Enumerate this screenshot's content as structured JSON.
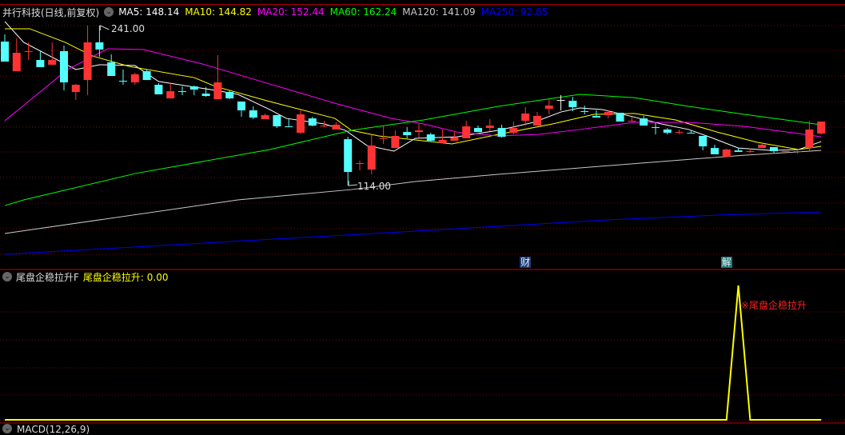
{
  "header": {
    "stock_title": "并行科技(日线,前复权)",
    "ma_legend": [
      {
        "label": "MA5: 148.14",
        "color": "#ffffff"
      },
      {
        "label": "MA10: 144.82",
        "color": "#ffff00"
      },
      {
        "label": "MA20: 152.44",
        "color": "#ff00ff"
      },
      {
        "label": "MA60: 162.24",
        "color": "#00ff00"
      },
      {
        "label": "MA120: 141.09",
        "color": "#c8c8c8"
      },
      {
        "label": "MA250: 92.85",
        "color": "#0000ff"
      }
    ]
  },
  "price_chart": {
    "chart_data": {
      "type": "candlestick",
      "up_color": "#ff3333",
      "down_color": "#54ffff",
      "high_label": "241.00",
      "low_label": "114.00",
      "ylim": [
        50,
        244
      ],
      "candles": [
        [
          228.3,
          234.0,
          212.4,
          212.4
        ],
        [
          204.8,
          230.8,
          204.8,
          219.4
        ],
        [
          220.7,
          227.7,
          213.7,
          220.7
        ],
        [
          213.7,
          221.3,
          208.0,
          208.0
        ],
        [
          209.9,
          227.7,
          209.9,
          213.7
        ],
        [
          220.7,
          225.1,
          189.6,
          195.9
        ],
        [
          188.3,
          194.6,
          181.9,
          194.0
        ],
        [
          197.8,
          241.0,
          185.8,
          227.7
        ],
        [
          227.7,
          241.0,
          216.2,
          222.0
        ],
        [
          211.8,
          218.1,
          201.0,
          201.0
        ],
        [
          197.2,
          206.1,
          194.0,
          197.2
        ],
        [
          195.9,
          203.5,
          194.0,
          202.3
        ],
        [
          204.8,
          206.1,
          197.8,
          197.8
        ],
        [
          194.0,
          195.3,
          186.4,
          186.4
        ],
        [
          183.2,
          195.9,
          183.2,
          188.9
        ],
        [
          188.9,
          192.7,
          185.8,
          188.8
        ],
        [
          192.7,
          193.4,
          185.8,
          190.2
        ],
        [
          187.0,
          192.1,
          184.5,
          185.1
        ],
        [
          182.6,
          217.5,
          182.6,
          195.9
        ],
        [
          188.3,
          189.6,
          182.6,
          183.2
        ],
        [
          180.7,
          180.7,
          168.6,
          173.7
        ],
        [
          173.7,
          176.9,
          166.7,
          168.0
        ],
        [
          166.7,
          171.2,
          166.7,
          169.9
        ],
        [
          169.9,
          169.9,
          159.7,
          161.0
        ],
        [
          161.0,
          167.3,
          161.0,
          160.9
        ],
        [
          155.9,
          174.3,
          155.3,
          170.5
        ],
        [
          167.3,
          168.6,
          161.0,
          161.6
        ],
        [
          161.6,
          165.4,
          160.4,
          161.6
        ],
        [
          158.5,
          164.2,
          158.5,
          162.3
        ],
        [
          150.8,
          152.7,
          114.0,
          124.8
        ],
        [
          131.8,
          133.7,
          126.1,
          131.8
        ],
        [
          126.7,
          154.0,
          122.9,
          145.8
        ],
        [
          151.5,
          161.0,
          147.0,
          151.5
        ],
        [
          143.8,
          157.8,
          143.8,
          153.4
        ],
        [
          156.5,
          160.4,
          151.5,
          154.0
        ],
        [
          156.5,
          162.9,
          152.1,
          157.8
        ],
        [
          154.6,
          155.9,
          148.9,
          149.6
        ],
        [
          147.7,
          158.5,
          147.7,
          150.2
        ],
        [
          149.6,
          156.5,
          149.6,
          152.1
        ],
        [
          151.5,
          165.4,
          151.5,
          161.0
        ],
        [
          159.7,
          161.6,
          156.5,
          156.5
        ],
        [
          159.7,
          166.7,
          157.2,
          161.6
        ],
        [
          159.7,
          162.3,
          152.1,
          152.7
        ],
        [
          155.9,
          164.8,
          154.6,
          159.7
        ],
        [
          165.4,
          176.2,
          161.6,
          171.2
        ],
        [
          161.6,
          172.4,
          161.6,
          169.3
        ],
        [
          175.0,
          182.6,
          170.5,
          177.5
        ],
        [
          181.9,
          185.8,
          173.7,
          181.9
        ],
        [
          181.3,
          184.5,
          173.1,
          176.2
        ],
        [
          173.1,
          177.5,
          170.5,
          173.0
        ],
        [
          169.3,
          173.7,
          168.0,
          168.0
        ],
        [
          169.9,
          173.7,
          167.3,
          172.4
        ],
        [
          171.8,
          171.8,
          164.8,
          164.8
        ],
        [
          165.4,
          168.6,
          164.8,
          165.4
        ],
        [
          167.3,
          169.3,
          161.6,
          161.6
        ],
        [
          160.4,
          164.2,
          154.6,
          160.4
        ],
        [
          158.5,
          159.7,
          154.6,
          155.9
        ],
        [
          156.5,
          158.5,
          154.6,
          156.5
        ],
        [
          155.9,
          157.8,
          155.3,
          155.9
        ],
        [
          153.4,
          153.4,
          141.9,
          145.1
        ],
        [
          143.8,
          146.4,
          138.8,
          138.8
        ],
        [
          136.9,
          143.2,
          136.9,
          142.6
        ],
        [
          141.9,
          143.8,
          140.7,
          140.7
        ],
        [
          141.3,
          143.2,
          140.0,
          141.3
        ],
        [
          143.8,
          147.7,
          143.8,
          146.4
        ],
        [
          144.5,
          144.5,
          140.0,
          141.3
        ],
        [
          141.3,
          142.6,
          139.4,
          141.3
        ],
        [
          141.3,
          142.6,
          139.4,
          141.3
        ],
        [
          143.8,
          165.4,
          140.7,
          158.5
        ],
        [
          155.3,
          164.8,
          154.6,
          164.8
        ]
      ],
      "neutral_candles": [
        47
      ],
      "ma_lines": [
        {
          "name": "MA5",
          "color": "#ffffff",
          "points": [
            [
              0,
              244.2
            ],
            [
              1.6,
              227.7
            ],
            [
              6,
              206.1
            ],
            [
              8,
              209.9
            ],
            [
              11,
              209.3
            ],
            [
              13,
              196.6
            ],
            [
              17.8,
              189.6
            ],
            [
              19.7,
              186.4
            ],
            [
              22.4,
              174.3
            ],
            [
              23.8,
              167.3
            ],
            [
              27,
              162.9
            ],
            [
              28.8,
              157.8
            ],
            [
              30.6,
              145.8
            ],
            [
              32.9,
              141.3
            ],
            [
              34.7,
              151.5
            ],
            [
              38.2,
              152.7
            ],
            [
              41.7,
              157.8
            ],
            [
              44.7,
              164.2
            ],
            [
              47,
              172.4
            ],
            [
              48.6,
              175.6
            ],
            [
              50.5,
              174.3
            ],
            [
              52.8,
              169.3
            ],
            [
              55.5,
              162.9
            ],
            [
              57.8,
              158.5
            ],
            [
              59.7,
              152.1
            ],
            [
              62,
              143.8
            ],
            [
              64.8,
              141.9
            ],
            [
              67.1,
              142.6
            ],
            [
              69,
              148.9
            ]
          ]
        },
        {
          "name": "MA10",
          "color": "#ffff00",
          "points": [
            [
              0,
              238.5
            ],
            [
              2.1,
              238.5
            ],
            [
              5.1,
              227.7
            ],
            [
              7.4,
              216.9
            ],
            [
              10.5,
              208.6
            ],
            [
              16,
              199.7
            ],
            [
              17.8,
              192.7
            ],
            [
              22.4,
              180.7
            ],
            [
              27.9,
              167.3
            ],
            [
              29.3,
              157.8
            ],
            [
              31.6,
              153.4
            ],
            [
              34.7,
              150.2
            ],
            [
              37.8,
              147.0
            ],
            [
              41.7,
              154.6
            ],
            [
              46.3,
              162.9
            ],
            [
              49.8,
              170.5
            ],
            [
              53.2,
              171.2
            ],
            [
              56.7,
              166.1
            ],
            [
              60.2,
              156.5
            ],
            [
              63.6,
              148.3
            ],
            [
              67.1,
              142.6
            ],
            [
              69,
              145.1
            ]
          ]
        },
        {
          "name": "MA20",
          "color": "#ff00ff",
          "points": [
            [
              0,
              165.4
            ],
            [
              5.3,
              206.1
            ],
            [
              8.7,
              222.6
            ],
            [
              11.7,
              222.0
            ],
            [
              16.7,
              210.5
            ],
            [
              22.4,
              194.6
            ],
            [
              28.1,
              178.8
            ],
            [
              32.7,
              167.3
            ],
            [
              35.4,
              162.9
            ],
            [
              38.2,
              156.5
            ],
            [
              41.7,
              153.4
            ],
            [
              45.1,
              154.6
            ],
            [
              48.6,
              158.5
            ],
            [
              53.2,
              164.2
            ],
            [
              57.8,
              164.2
            ],
            [
              62.5,
              161.0
            ],
            [
              67.1,
              155.3
            ],
            [
              69,
              152.7
            ]
          ]
        },
        {
          "name": "MA60",
          "color": "#00ff00",
          "points": [
            [
              0,
              98.1
            ],
            [
              1.6,
              102.6
            ],
            [
              11,
              123.5
            ],
            [
              22.4,
              142.6
            ],
            [
              29.3,
              157.8
            ],
            [
              35.4,
              166.1
            ],
            [
              41.7,
              176.9
            ],
            [
              48.6,
              186.4
            ],
            [
              53.2,
              183.8
            ],
            [
              57.8,
              176.9
            ],
            [
              62.5,
              170.5
            ],
            [
              69,
              162.3
            ]
          ]
        },
        {
          "name": "MA120",
          "color": "#c8c8c8",
          "points": [
            [
              0,
              75.9
            ],
            [
              19.7,
              102.6
            ],
            [
              29.3,
              110.8
            ],
            [
              34.7,
              117.2
            ],
            [
              41.7,
              122.9
            ],
            [
              48.6,
              128.0
            ],
            [
              55.5,
              133.1
            ],
            [
              62.5,
              138.1
            ],
            [
              69,
              141.9
            ]
          ]
        },
        {
          "name": "MA250",
          "color": "#0000ff",
          "points": [
            [
              0,
              59.4
            ],
            [
              34.7,
              77.8
            ],
            [
              41.7,
              81.6
            ],
            [
              50.9,
              86.7
            ],
            [
              60.2,
              90.5
            ],
            [
              69,
              93.0
            ]
          ]
        }
      ]
    },
    "event_markers": [
      {
        "label": "财",
        "index": 44,
        "bg": "#1c3c78"
      },
      {
        "label": "解",
        "index": 61,
        "bg": "#1a7a7a"
      }
    ]
  },
  "indicator": {
    "name": "尾盘企稳拉升F",
    "value_label": "尾盘企稳拉升: 0.00",
    "signal_label": "※尾盘企稳拉升",
    "signal_color": "#ff2020",
    "chart_data": {
      "type": "line",
      "color": "#ffff00",
      "spike_index": 62,
      "count": 70,
      "ylim": [
        0,
        1
      ]
    }
  },
  "macd_legend": {
    "label": "MACD(12,26,9)"
  }
}
